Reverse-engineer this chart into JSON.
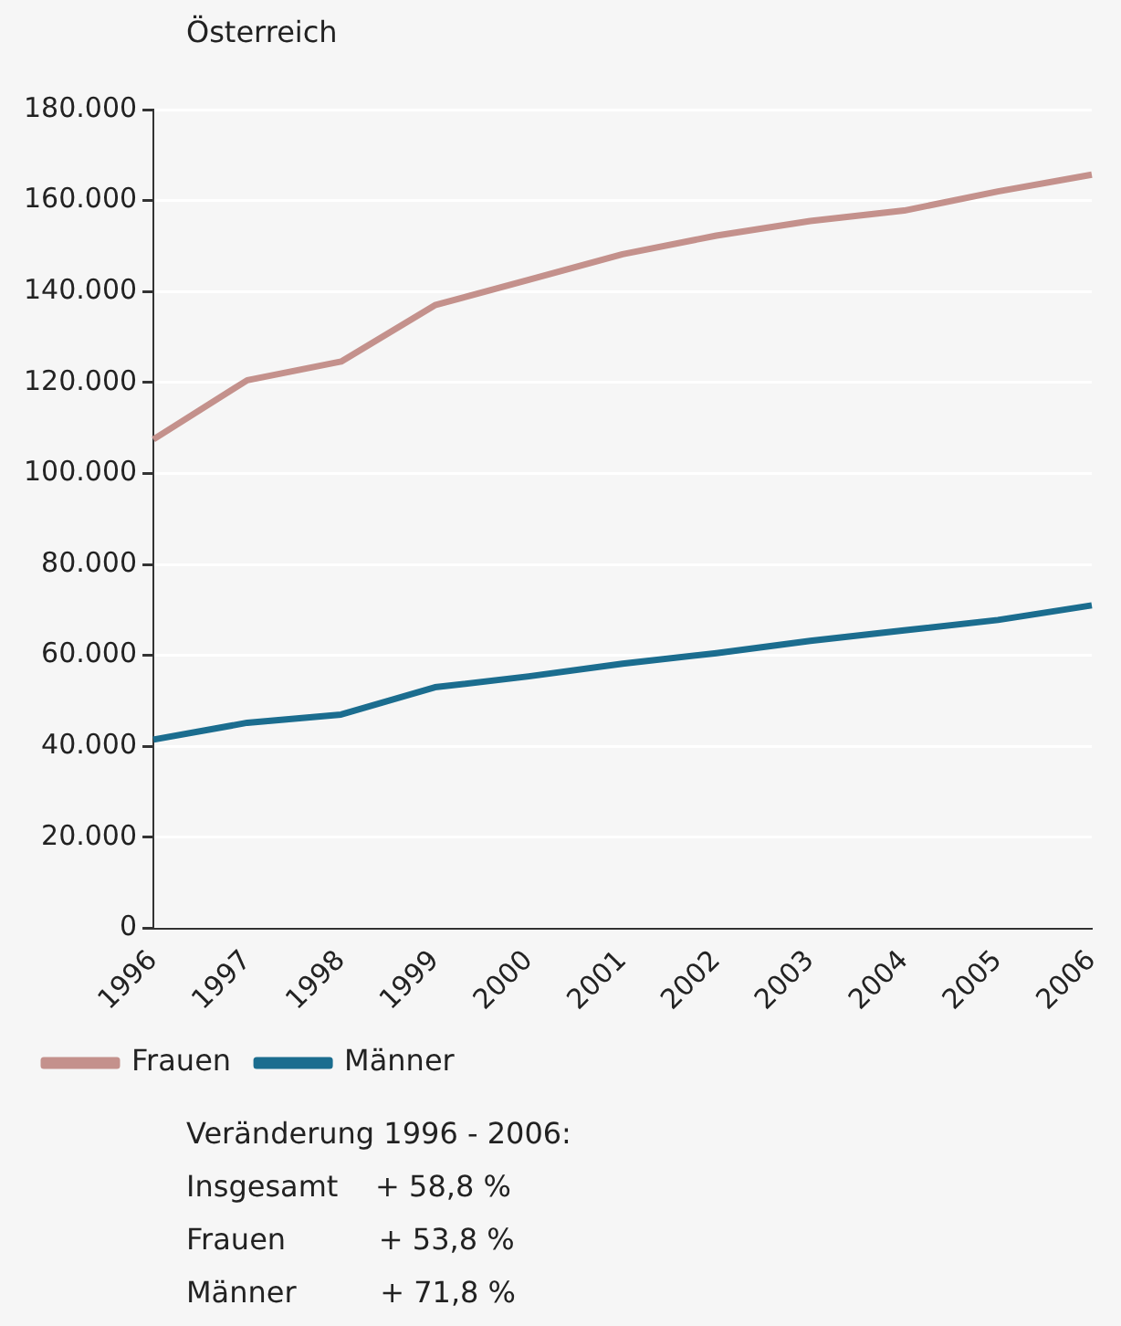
{
  "chart_data": {
    "type": "line",
    "title": "Österreich",
    "categories": [
      "1996",
      "1997",
      "1998",
      "1999",
      "2000",
      "2001",
      "2002",
      "2003",
      "2004",
      "2005",
      "2006"
    ],
    "series": [
      {
        "name": "Frauen",
        "color": "#c4918c",
        "values": [
          107500,
          120500,
          124600,
          137000,
          142600,
          148200,
          152300,
          155500,
          157800,
          162000,
          165700
        ]
      },
      {
        "name": "Männer",
        "color": "#1b6d8f",
        "values": [
          41500,
          45200,
          47000,
          53000,
          55400,
          58200,
          60500,
          63200,
          65500,
          67800,
          71000
        ]
      }
    ],
    "ylim": [
      0,
      180000
    ],
    "yticks": [
      0,
      {
        "value": 20000,
        "label": "20.000"
      },
      {
        "value": 40000,
        "label": "40.000"
      },
      {
        "value": 60000,
        "label": "60.000"
      },
      {
        "value": 80000,
        "label": "80.000"
      },
      {
        "value": 100000,
        "label": "100.000"
      },
      {
        "value": 120000,
        "label": "120.000"
      },
      {
        "value": 140000,
        "label": "140.000"
      },
      {
        "value": 160000,
        "label": "160.000"
      },
      {
        "value": 180000,
        "label": "180.000"
      }
    ],
    "grid": "y",
    "legend": "bottom",
    "marker": "none",
    "line_style": "solid",
    "annotations": [
      "Veränderung 1996 - 2006:",
      "Insgesamt    + 58,8 %",
      "Frauen          + 53,8 %",
      "Männer         + 71,8 %"
    ]
  }
}
